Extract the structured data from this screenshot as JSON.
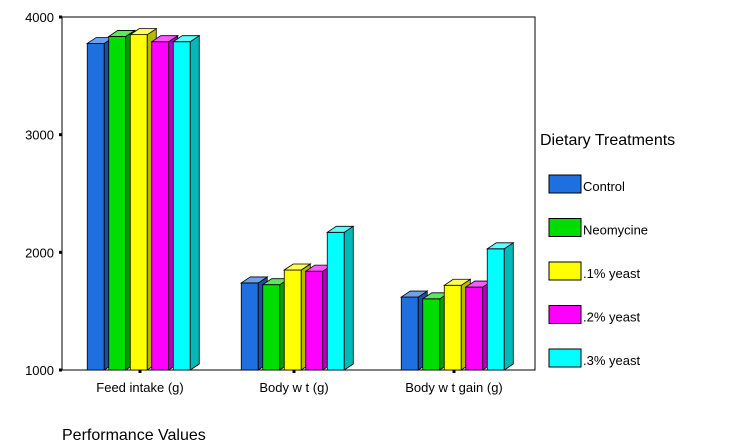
{
  "chart_data": {
    "type": "bar",
    "style": "3d-clustered",
    "categories": [
      "Feed intake (g)",
      "Body w t (g)",
      "Body w t gain (g)"
    ],
    "series": [
      {
        "name": "Control",
        "color": "#1E6FE0",
        "values": [
          3775,
          1740,
          1620
        ]
      },
      {
        "name": "Neomycine",
        "color": "#00DD00",
        "values": [
          3835,
          1725,
          1605
        ]
      },
      {
        "name": ".1% yeast",
        "color": "#FFFF00",
        "values": [
          3850,
          1850,
          1720
        ]
      },
      {
        "name": ".2% yeast",
        "color": "#FF00FF",
        "values": [
          3790,
          1840,
          1705
        ]
      },
      {
        "name": ".3% yeast",
        "color": "#00FFFF",
        "values": [
          3790,
          2170,
          2030
        ]
      }
    ],
    "ylim": [
      1000,
      4000
    ],
    "yticks": [
      "1000",
      "2000",
      "3000",
      "4000"
    ],
    "xlabel": "Performance Values",
    "ylabel": "",
    "title": "",
    "legend": {
      "title": "Dietary Treatments",
      "position": "right"
    },
    "grid": false
  }
}
